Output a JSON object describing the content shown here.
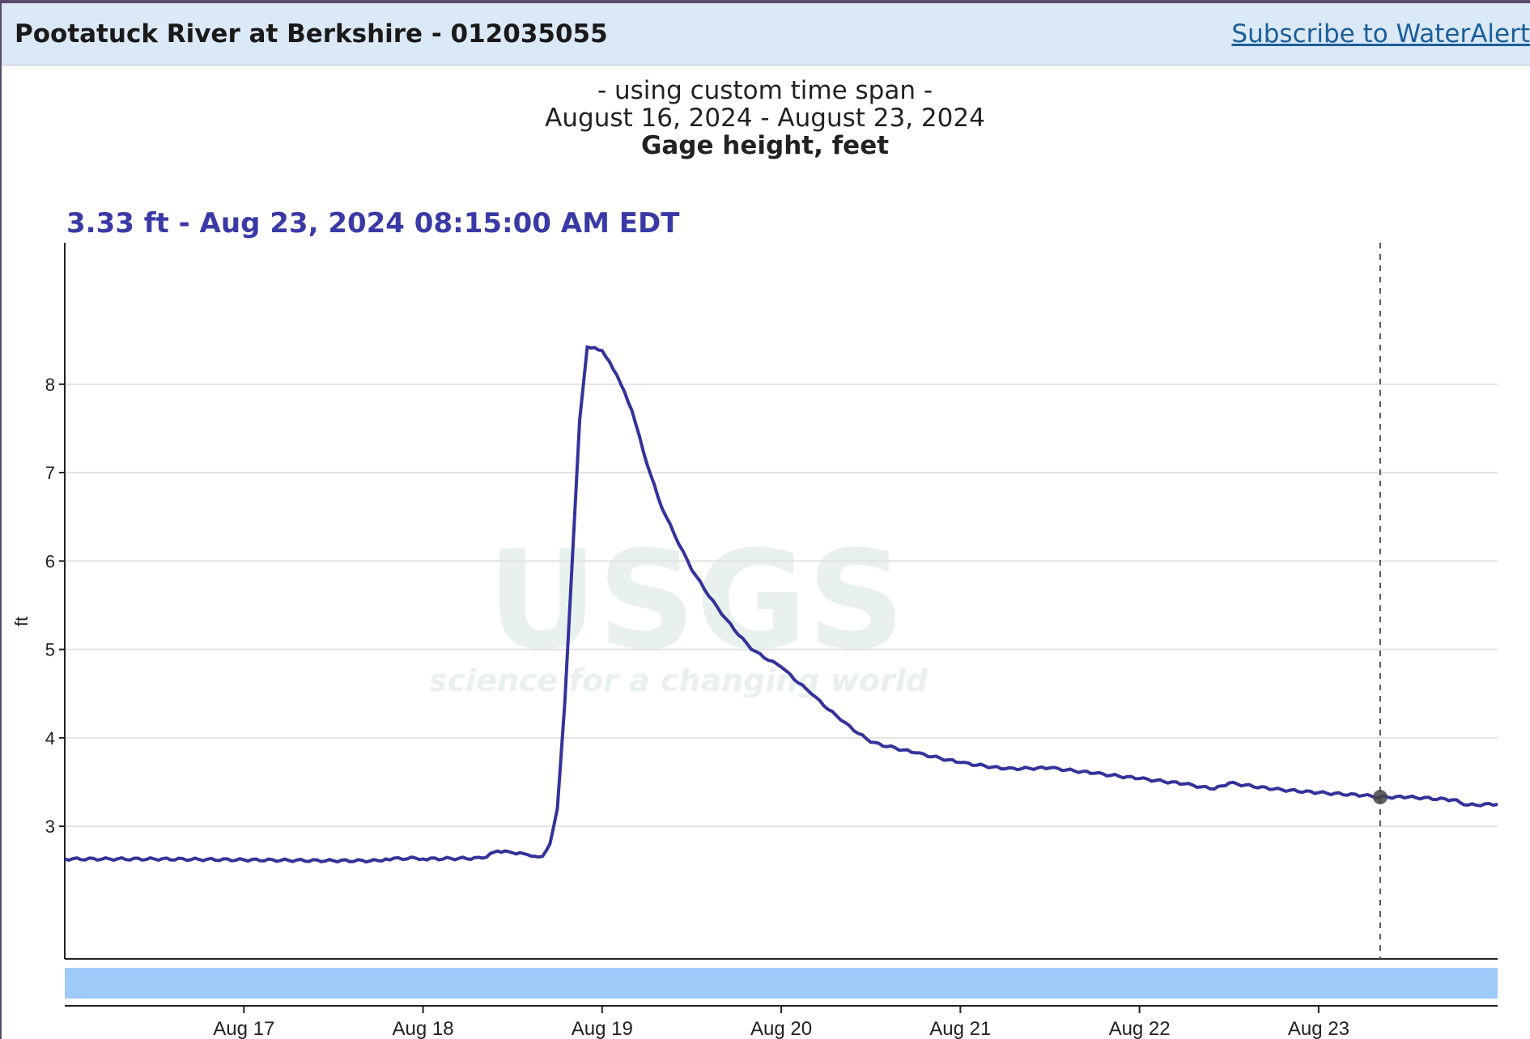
{
  "header": {
    "site_title": "Pootatuck River at Berkshire - 012035055",
    "subscribe_label": "Subscribe to WaterAlert"
  },
  "caption": {
    "line1": "- using custom time span -",
    "line2": "August 16, 2024 - August 23, 2024",
    "line3": "Gage height, feet"
  },
  "readout": "3.33 ft - Aug 23, 2024 08:15:00 AM EDT",
  "watermark": {
    "logo": "USGS",
    "tagline": "science for a changing world"
  },
  "colors": {
    "line": "#33339a",
    "header_bg": "#dbe8f5",
    "brush": "#9ecbf7",
    "readout": "#3a3aa6"
  },
  "chart_data": {
    "type": "line",
    "ylabel": "ft",
    "xlabel": "",
    "ylim": [
      1.5,
      9.6
    ],
    "yticks": [
      3,
      4,
      5,
      6,
      7,
      8
    ],
    "xlim": [
      "2024-08-16 00:00",
      "2024-08-23 23:59"
    ],
    "xticks": [
      "Aug 17",
      "Aug 18",
      "Aug 19",
      "Aug 20",
      "Aug 21",
      "Aug 22",
      "Aug 23"
    ],
    "grid": true,
    "cursor": {
      "x": "2024-08-23 08:15",
      "y": 3.33
    },
    "series": [
      {
        "x": [
          "2024-08-16 00:00",
          "2024-08-16 12:00",
          "2024-08-17 00:00",
          "2024-08-17 12:00",
          "2024-08-17 18:00",
          "2024-08-17 19:00",
          "2024-08-17 23:00",
          "2024-08-18 00:00",
          "2024-08-18 08:00",
          "2024-08-18 10:00",
          "2024-08-18 12:00",
          "2024-08-18 14:00",
          "2024-08-18 15:00",
          "2024-08-18 16:00",
          "2024-08-18 17:00",
          "2024-08-18 18:00",
          "2024-08-18 19:00",
          "2024-08-18 20:00",
          "2024-08-18 21:00",
          "2024-08-18 22:00",
          "2024-08-19 00:00",
          "2024-08-19 02:00",
          "2024-08-19 04:00",
          "2024-08-19 06:00",
          "2024-08-19 08:00",
          "2024-08-19 12:00",
          "2024-08-19 16:00",
          "2024-08-19 20:00",
          "2024-08-20 00:00",
          "2024-08-20 04:00",
          "2024-08-20 08:00",
          "2024-08-20 12:00",
          "2024-08-20 18:00",
          "2024-08-21 00:00",
          "2024-08-21 06:00",
          "2024-08-21 12:00",
          "2024-08-21 18:00",
          "2024-08-22 00:00",
          "2024-08-22 06:00",
          "2024-08-22 10:00",
          "2024-08-22 12:00",
          "2024-08-22 18:00",
          "2024-08-23 00:00",
          "2024-08-23 06:00",
          "2024-08-23 08:15",
          "2024-08-23 12:00",
          "2024-08-23 18:00",
          "2024-08-23 20:00",
          "2024-08-23 23:59"
        ],
        "y": [
          2.63,
          2.63,
          2.62,
          2.61,
          2.61,
          2.63,
          2.64,
          2.63,
          2.64,
          2.72,
          2.7,
          2.68,
          2.66,
          2.66,
          2.8,
          3.2,
          4.4,
          6.0,
          7.6,
          8.42,
          8.38,
          8.1,
          7.7,
          7.1,
          6.6,
          5.9,
          5.4,
          5.0,
          4.8,
          4.5,
          4.2,
          3.95,
          3.83,
          3.72,
          3.65,
          3.66,
          3.6,
          3.54,
          3.48,
          3.42,
          3.49,
          3.42,
          3.38,
          3.35,
          3.33,
          3.33,
          3.3,
          3.24,
          3.25
        ]
      }
    ]
  }
}
